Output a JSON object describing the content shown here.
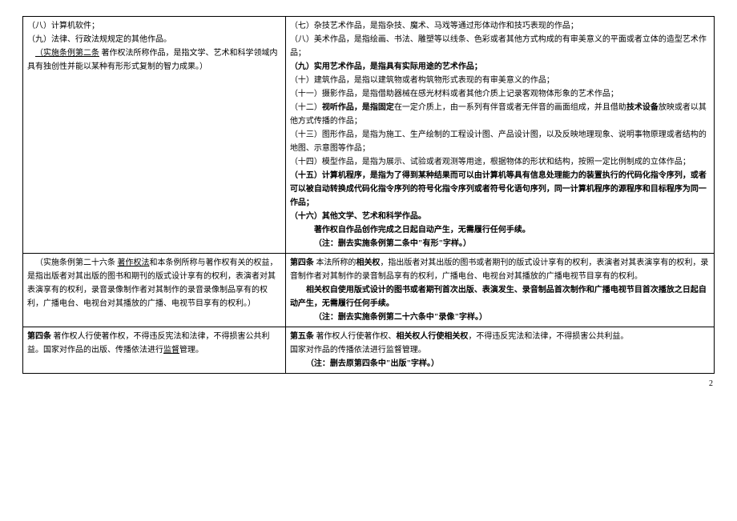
{
  "page_number": "2",
  "rows": [
    {
      "left": [
        {
          "t": "（八）计算机软件；"
        },
        {
          "t": "（九）法律、行政法规规定的其他作品。"
        },
        {
          "seg": [
            {
              "t": "（实施条例第二条",
              "cls": "u"
            },
            {
              "t": "  著作权法所称作品，是指文学、艺术和科学领域内具有独创性并能以某种有形形式复制的智力成果。）"
            }
          ],
          "cls": "indent1"
        }
      ],
      "right": [
        {
          "t": "（七）杂技艺术作品，是指杂技、魔术、马戏等通过形体动作和技巧表现的作品；"
        },
        {
          "t": "（八）美术作品，是指绘画、书法、雕塑等以线条、色彩或者其他方式构成的有审美意义的平面或者立体的造型艺术作品；"
        },
        {
          "seg": [
            {
              "t": "（九）实用艺术作品，是指具有实际用途的艺术作品；",
              "cls": "b"
            }
          ]
        },
        {
          "t": "（十）建筑作品，是指以建筑物或者构筑物形式表现的有审美意义的作品；"
        },
        {
          "t": "（十一）摄影作品，是指借助器械在感光材料或者其他介质上记录客观物体形象的艺术作品；"
        },
        {
          "seg": [
            {
              "t": "（十二）"
            },
            {
              "t": "视听作品，是指固定",
              "cls": "b"
            },
            {
              "t": "在一定介质上，由一系列有伴音或者无伴音的画面组成，并且借助"
            },
            {
              "t": "技术设备",
              "cls": "b"
            },
            {
              "t": "放映或者以其他方式传播的作品；"
            }
          ]
        },
        {
          "t": "（十三）图形作品，是指为施工、生产绘制的工程设计图、产品设计图，以及反映地理现象、说明事物原理或者结构的地图、示意图等作品；"
        },
        {
          "t": "（十四）模型作品，是指为展示、试验或者观测等用途，根据物体的形状和结构，按照一定比例制成的立体作品；"
        },
        {
          "seg": [
            {
              "t": "（十五）计算机程序，是指为了得到某种结果而可以由计算机等具有信息处理能力的装置执行的代码化指令序列，或者可以被自动转换成代码化指令序列的符号化指令序列或者符号化语句序列，同一计算机程序的源程序和目标程序为同一作品；",
              "cls": "b"
            }
          ]
        },
        {
          "seg": [
            {
              "t": "（十六）其他文学、艺术和科学作品。",
              "cls": "b"
            }
          ]
        },
        {
          "seg": [
            {
              "t": "著作权自作品创作完成之日起自动产生，无需履行任何手续。",
              "cls": "b"
            }
          ],
          "cls": "indent3"
        },
        {
          "seg": [
            {
              "t": "（注：删去实施条例第二条中\"有形\"字样。）",
              "cls": "b"
            }
          ],
          "cls": "indent3"
        }
      ]
    },
    {
      "left": [
        {
          "seg": [
            {
              "t": "（实施条例第二十六条  "
            },
            {
              "t": "著作权法",
              "cls": "u"
            },
            {
              "t": "和本条例所称与著作权有关的权益，是指出版者对其出版的图书和期刊的版式设计享有的权利，表演者对其表演享有的权利，录音录像制作者对其制作的录音录像制品享有的权利，广播电台、电视台对其播放的广播、电视节目享有的权利。）"
            }
          ],
          "cls": "indent1"
        }
      ],
      "right": [
        {
          "seg": [
            {
              "t": "第四条",
              "cls": "b"
            },
            {
              "t": "  本法所称的"
            },
            {
              "t": "相关权",
              "cls": "b"
            },
            {
              "t": "，指出版者对其出版的图书或者期刊的版式设计享有的权利，表演者对其表演享有的权利，录音制作者对其制作的录音制品享有的权利，广播电台、电视台对其播放的广播电视节目享有的权利。"
            }
          ]
        },
        {
          "seg": [
            {
              "t": "相关权自使用版式设计的图书或者期刊首次出版、表演发生、录音制品首次制作和广播电视节目首次播放之日起自动产生，无需履行任何手续。",
              "cls": "b"
            }
          ],
          "cls": "indent2"
        },
        {
          "seg": [
            {
              "t": "（注：删去实施条例第二十六条中\"录像\"字样。）",
              "cls": "b"
            }
          ],
          "cls": "indent3"
        }
      ]
    },
    {
      "left": [
        {
          "seg": [
            {
              "t": "第四条",
              "cls": "b"
            },
            {
              "t": "  著作权人行使著作权，不得违反宪法和法律，不得损害公共利益。国家对作品的出版、传播依法进行"
            },
            {
              "t": "监督",
              "cls": "u"
            },
            {
              "t": "管理。"
            }
          ]
        }
      ],
      "right": [
        {
          "seg": [
            {
              "t": "第五条",
              "cls": "b"
            },
            {
              "t": "  著作权人行使著作权、"
            },
            {
              "t": "相关权人行使相关权",
              "cls": "b"
            },
            {
              "t": "，不得违反宪法和法律，不得损害公共利益。"
            }
          ]
        },
        {
          "t": "国家对作品的传播依法进行监督管理。"
        },
        {
          "seg": [
            {
              "t": "（注：删去原第四条中\"出版\"字样。）",
              "cls": "b"
            }
          ],
          "cls": "indent2"
        }
      ]
    }
  ]
}
